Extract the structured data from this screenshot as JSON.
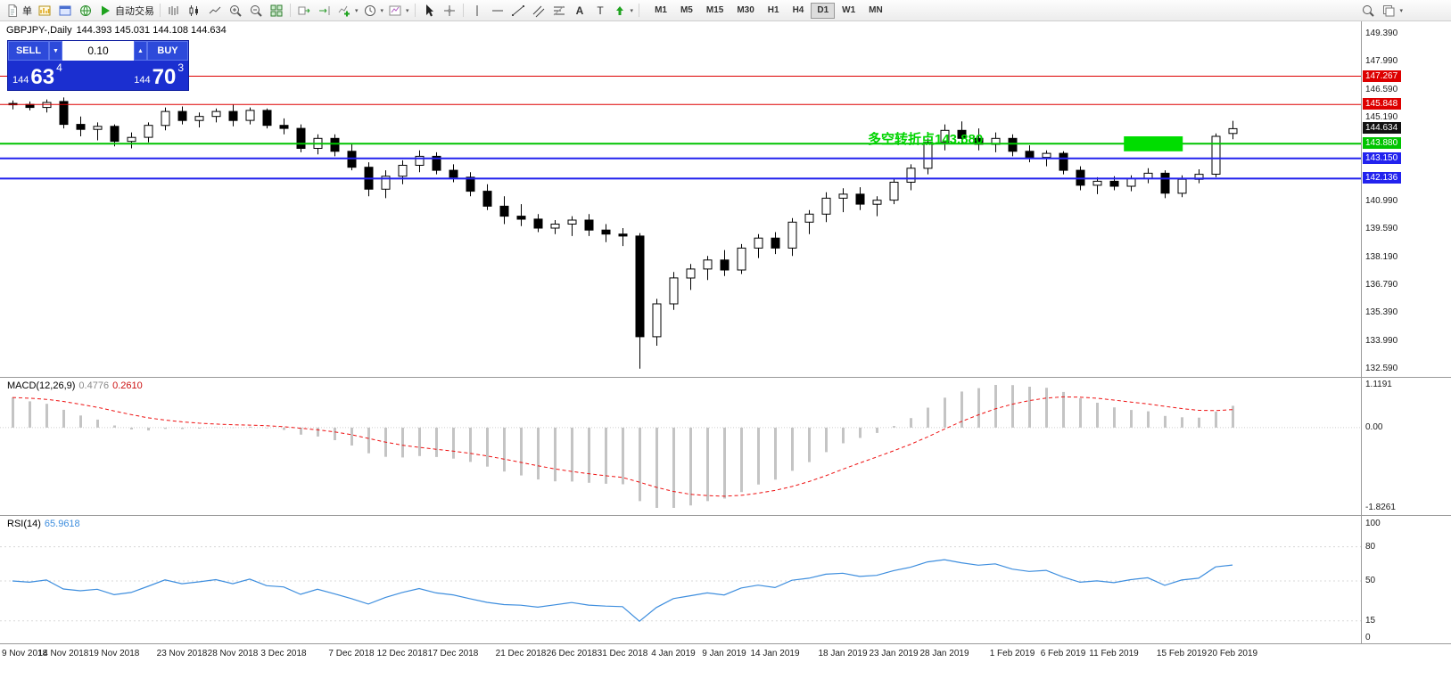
{
  "toolbar": {
    "new_order_label": "单",
    "autotrading_label": "自动交易",
    "timeframes": [
      "M1",
      "M5",
      "M15",
      "M30",
      "H1",
      "H4",
      "D1",
      "W1",
      "MN"
    ],
    "active_timeframe": "D1"
  },
  "chart_header": {
    "symbol": "GBPJPY-,Daily",
    "ohlc": "144.393 145.031 144.108 144.634"
  },
  "trade_panel": {
    "sell_label": "SELL",
    "buy_label": "BUY",
    "lot_value": "0.10",
    "sell_price": {
      "prefix": "144",
      "big": "63",
      "sup": "4"
    },
    "buy_price": {
      "prefix": "144",
      "big": "70",
      "sup": "3"
    }
  },
  "main_chart": {
    "price_at_top": 149.39,
    "price_at_bottom": 132.59,
    "price_axis_ticks": [
      149.39,
      147.99,
      146.59,
      145.19,
      140.99,
      139.59,
      138.19,
      136.79,
      135.39,
      133.99,
      132.59
    ],
    "levels": [
      {
        "price": 147.267,
        "color": "#dd0000",
        "line_width": 1
      },
      {
        "price": 145.848,
        "color": "#dd0000",
        "line_width": 1
      },
      {
        "price": 143.88,
        "color": "#00c400",
        "line_width": 2
      },
      {
        "price": 143.15,
        "color": "#2222ee",
        "line_width": 2
      },
      {
        "price": 142.136,
        "color": "#2222ee",
        "line_width": 2
      }
    ],
    "current_price": 144.634,
    "annotation": {
      "text": "多空转折点143.880",
      "color": "#00d400"
    },
    "zone_rect": {
      "start_index": 65.8,
      "end_index": 68.8,
      "price_top": 144.25,
      "price_bottom": 143.5,
      "color": "#00dd00"
    }
  },
  "macd_pane": {
    "name": "MACD(12,26,9)",
    "value_main": "0.4776",
    "value_signal": "0.2610",
    "axis_max": "1.1191",
    "axis_zero": "0.00",
    "axis_min": "-1.8261"
  },
  "rsi_pane": {
    "name": "RSI(14)",
    "value": "65.9618",
    "axis_ticks": [
      100,
      80,
      50,
      15,
      0
    ],
    "levels": [
      80,
      50,
      15
    ]
  },
  "colors": {
    "up_candle": "#ffffff",
    "down_candle": "#000000",
    "candle_border": "#000000",
    "macd_histogram": "#c4c4c4",
    "macd_signal": "#ee1111",
    "rsi_line": "#3e8ede"
  },
  "chart_data": {
    "type": "candlestick",
    "symbol": "GBPJPY-",
    "timeframe": "Daily",
    "columns": [
      "date",
      "open",
      "high",
      "low",
      "close"
    ],
    "candles": [
      [
        "9 Nov 2018",
        145.9,
        146.05,
        145.6,
        145.85
      ],
      [
        "12 Nov 2018",
        145.85,
        146.0,
        145.55,
        145.7
      ],
      [
        "13 Nov 2018",
        145.7,
        146.1,
        145.45,
        145.95
      ],
      [
        "14 Nov 2018",
        146.0,
        146.2,
        144.65,
        144.85
      ],
      [
        "15 Nov 2018",
        144.85,
        145.25,
        144.25,
        144.6
      ],
      [
        "16 Nov 2018",
        144.6,
        144.95,
        144.05,
        144.75
      ],
      [
        "19 Nov 2018",
        144.75,
        144.85,
        143.75,
        144.0
      ],
      [
        "20 Nov 2018",
        144.0,
        144.45,
        143.65,
        144.2
      ],
      [
        "21 Nov 2018",
        144.2,
        144.95,
        143.95,
        144.8
      ],
      [
        "22 Nov 2018",
        144.8,
        145.7,
        144.55,
        145.5
      ],
      [
        "23 Nov 2018",
        145.5,
        145.75,
        144.85,
        145.05
      ],
      [
        "26 Nov 2018",
        145.05,
        145.45,
        144.7,
        145.25
      ],
      [
        "27 Nov 2018",
        145.25,
        145.65,
        144.95,
        145.5
      ],
      [
        "28 Nov 2018",
        145.5,
        145.85,
        144.75,
        145.05
      ],
      [
        "29 Nov 2018",
        145.05,
        145.7,
        144.85,
        145.55
      ],
      [
        "30 Nov 2018",
        145.55,
        145.65,
        144.65,
        144.8
      ],
      [
        "3 Dec 2018",
        144.8,
        145.15,
        144.35,
        144.65
      ],
      [
        "4 Dec 2018",
        144.65,
        144.85,
        143.45,
        143.65
      ],
      [
        "5 Dec 2018",
        143.65,
        144.35,
        143.35,
        144.15
      ],
      [
        "6 Dec 2018",
        144.15,
        144.35,
        143.25,
        143.5
      ],
      [
        "7 Dec 2018",
        143.5,
        143.85,
        142.55,
        142.7
      ],
      [
        "10 Dec 2018",
        142.7,
        142.95,
        141.25,
        141.6
      ],
      [
        "11 Dec 2018",
        141.6,
        142.55,
        141.15,
        142.25
      ],
      [
        "12 Dec 2018",
        142.25,
        143.05,
        141.85,
        142.8
      ],
      [
        "13 Dec 2018",
        142.8,
        143.55,
        142.45,
        143.25
      ],
      [
        "14 Dec 2018",
        143.25,
        143.45,
        142.35,
        142.55
      ],
      [
        "17 Dec 2018",
        142.55,
        142.85,
        141.95,
        142.2
      ],
      [
        "18 Dec 2018",
        142.2,
        142.45,
        141.25,
        141.5
      ],
      [
        "19 Dec 2018",
        141.5,
        141.85,
        140.55,
        140.75
      ],
      [
        "20 Dec 2018",
        140.75,
        141.25,
        139.85,
        140.25
      ],
      [
        "21 Dec 2018",
        140.25,
        140.85,
        139.75,
        140.1
      ],
      [
        "24 Dec 2018",
        140.1,
        140.35,
        139.45,
        139.65
      ],
      [
        "25 Dec 2018",
        139.65,
        140.05,
        139.35,
        139.85
      ],
      [
        "26 Dec 2018",
        139.85,
        140.25,
        139.25,
        140.05
      ],
      [
        "27 Dec 2018",
        140.05,
        140.35,
        139.25,
        139.55
      ],
      [
        "28 Dec 2018",
        139.55,
        139.85,
        138.95,
        139.35
      ],
      [
        "31 Dec 2018",
        139.35,
        139.65,
        138.75,
        139.25
      ],
      [
        "2 Jan 2019",
        139.25,
        139.4,
        132.6,
        134.2
      ],
      [
        "3 Jan 2019",
        134.2,
        136.1,
        133.75,
        135.85
      ],
      [
        "4 Jan 2019",
        135.85,
        137.45,
        135.55,
        137.15
      ],
      [
        "7 Jan 2019",
        137.15,
        137.85,
        136.55,
        137.6
      ],
      [
        "8 Jan 2019",
        137.6,
        138.25,
        137.05,
        138.05
      ],
      [
        "9 Jan 2019",
        138.05,
        138.55,
        137.25,
        137.55
      ],
      [
        "10 Jan 2019",
        137.55,
        138.85,
        137.35,
        138.65
      ],
      [
        "11 Jan 2019",
        138.65,
        139.35,
        138.15,
        139.15
      ],
      [
        "14 Jan 2019",
        139.15,
        139.45,
        138.35,
        138.65
      ],
      [
        "15 Jan 2019",
        138.65,
        140.15,
        138.25,
        139.95
      ],
      [
        "16 Jan 2019",
        139.95,
        140.55,
        139.35,
        140.35
      ],
      [
        "17 Jan 2019",
        140.35,
        141.45,
        139.95,
        141.15
      ],
      [
        "18 Jan 2019",
        141.15,
        141.65,
        140.45,
        141.35
      ],
      [
        "21 Jan 2019",
        141.35,
        141.7,
        140.55,
        140.85
      ],
      [
        "22 Jan 2019",
        140.85,
        141.25,
        140.25,
        141.05
      ],
      [
        "23 Jan 2019",
        141.05,
        142.15,
        140.85,
        141.95
      ],
      [
        "24 Jan 2019",
        141.95,
        142.85,
        141.55,
        142.65
      ],
      [
        "25 Jan 2019",
        142.65,
        144.15,
        142.35,
        143.95
      ],
      [
        "28 Jan 2019",
        143.95,
        144.85,
        143.55,
        144.55
      ],
      [
        "29 Jan 2019",
        144.55,
        145.0,
        143.85,
        144.15
      ],
      [
        "30 Jan 2019",
        144.15,
        144.65,
        143.55,
        143.85
      ],
      [
        "31 Jan 2019",
        143.85,
        144.45,
        143.45,
        144.15
      ],
      [
        "1 Feb 2019",
        144.15,
        144.35,
        143.25,
        143.5
      ],
      [
        "4 Feb 2019",
        143.5,
        143.8,
        142.95,
        143.2
      ],
      [
        "5 Feb 2019",
        143.2,
        143.55,
        142.75,
        143.4
      ],
      [
        "6 Feb 2019",
        143.4,
        143.5,
        142.35,
        142.55
      ],
      [
        "7 Feb 2019",
        142.55,
        142.75,
        141.55,
        141.8
      ],
      [
        "8 Feb 2019",
        141.8,
        142.2,
        141.35,
        142.0
      ],
      [
        "11 Feb 2019",
        142.0,
        142.25,
        141.55,
        141.75
      ],
      [
        "12 Feb 2019",
        141.75,
        142.3,
        141.5,
        142.15
      ],
      [
        "13 Feb 2019",
        142.15,
        142.65,
        141.9,
        142.4
      ],
      [
        "14 Feb 2019",
        142.4,
        142.55,
        141.15,
        141.4
      ],
      [
        "15 Feb 2019",
        141.4,
        142.3,
        141.2,
        142.1
      ],
      [
        "18 Feb 2019",
        142.1,
        142.6,
        141.9,
        142.35
      ],
      [
        "19 Feb 2019",
        142.35,
        144.4,
        142.2,
        144.25
      ],
      [
        "20 Feb 2019",
        144.393,
        145.031,
        144.108,
        144.634
      ]
    ],
    "date_axis_labels": [
      {
        "text": "9 Nov 2018",
        "index": 0
      },
      {
        "text": "14 Nov 2018",
        "index": 3
      },
      {
        "text": "19 Nov 2018",
        "index": 6
      },
      {
        "text": "23 Nov 2018",
        "index": 10
      },
      {
        "text": "28 Nov 2018",
        "index": 13
      },
      {
        "text": "3 Dec 2018",
        "index": 16
      },
      {
        "text": "7 Dec 2018",
        "index": 20
      },
      {
        "text": "12 Dec 2018",
        "index": 23
      },
      {
        "text": "17 Dec 2018",
        "index": 26
      },
      {
        "text": "21 Dec 2018",
        "index": 30
      },
      {
        "text": "26 Dec 2018",
        "index": 33
      },
      {
        "text": "31 Dec 2018",
        "index": 36
      },
      {
        "text": "4 Jan 2019",
        "index": 39
      },
      {
        "text": "9 Jan 2019",
        "index": 42
      },
      {
        "text": "14 Jan 2019",
        "index": 45
      },
      {
        "text": "18 Jan 2019",
        "index": 49
      },
      {
        "text": "23 Jan 2019",
        "index": 52
      },
      {
        "text": "28 Jan 2019",
        "index": 55
      },
      {
        "text": "1 Feb 2019",
        "index": 59
      },
      {
        "text": "6 Feb 2019",
        "index": 62
      },
      {
        "text": "11 Feb 2019",
        "index": 65
      },
      {
        "text": "15 Feb 2019",
        "index": 69
      },
      {
        "text": "20 Feb 2019",
        "index": 72
      }
    ],
    "indicators": [
      {
        "type": "MACD",
        "fast": 12,
        "slow": 26,
        "signal": 9,
        "current": 0.4776,
        "current_signal": 0.261
      },
      {
        "type": "RSI",
        "period": 14,
        "current": 65.9618
      }
    ]
  }
}
